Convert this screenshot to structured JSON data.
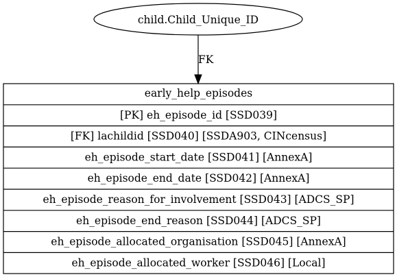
{
  "source_node": {
    "label": "child.Child_Unique_ID"
  },
  "edge": {
    "label": "FK"
  },
  "table": {
    "title": "early_help_episodes",
    "rows": [
      "[PK] eh_episode_id [SSD039]",
      "[FK] lachildid [SSD040] [SSDA903, CINcensus]",
      "eh_episode_start_date [SSD041] [AnnexA]",
      "eh_episode_end_date [SSD042] [AnnexA]",
      "eh_episode_reason_for_involvement [SSD043] [ADCS_SP]",
      "eh_episode_end_reason [SSD044] [ADCS_SP]",
      "eh_episode_allocated_organisation [SSD045] [AnnexA]",
      "eh_episode_allocated_worker [SSD046] [Local]"
    ]
  }
}
